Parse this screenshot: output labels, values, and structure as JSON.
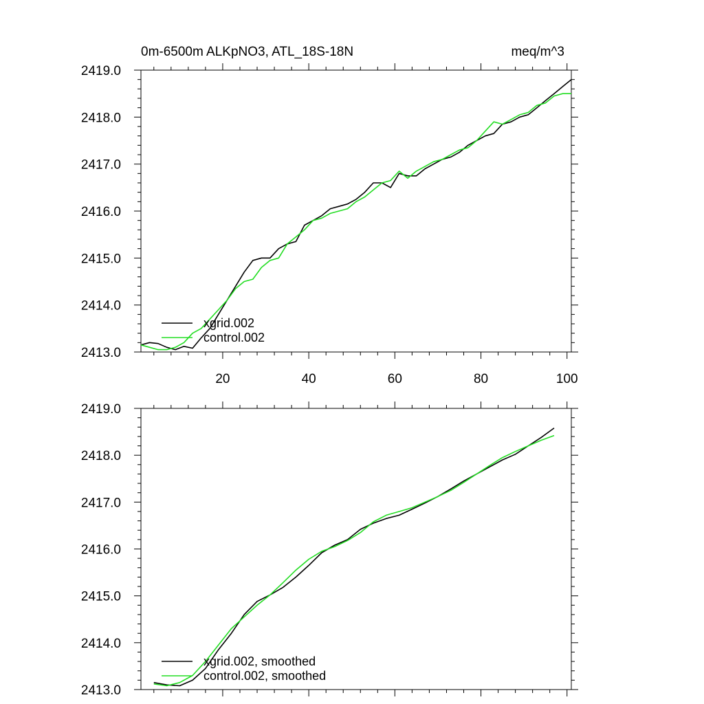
{
  "header": {
    "title_left": "0m-6500m ALKpNO3, ATL_18S-18N",
    "title_right": "meq/m^3"
  },
  "colors": {
    "xgrid": "#000000",
    "control": "#22dd22",
    "axis": "#000000",
    "background": "#ffffff"
  },
  "chart_data": [
    {
      "type": "line",
      "title": "0m-6500m ALKpNO3, ATL_18S-18N",
      "units": "meq/m^3",
      "xlim": [
        1,
        101
      ],
      "ylim": [
        2413.0,
        2419.0
      ],
      "x_ticks": [
        "20",
        "40",
        "60",
        "80",
        "100"
      ],
      "y_ticks": [
        "2413.0",
        "2414.0",
        "2415.0",
        "2416.0",
        "2417.0",
        "2418.0",
        "2419.0"
      ],
      "grid": false,
      "legend_position": "bottom-left",
      "series": [
        {
          "name": "xgrid.002",
          "key": "xgrid",
          "x": [
            1,
            3,
            5,
            7,
            9,
            11,
            13,
            15,
            17,
            19,
            21,
            23,
            25,
            27,
            29,
            31,
            33,
            35,
            37,
            39,
            41,
            43,
            45,
            47,
            49,
            51,
            53,
            55,
            57,
            59,
            61,
            63,
            65,
            67,
            69,
            71,
            73,
            75,
            77,
            79,
            81,
            83,
            85,
            87,
            89,
            91,
            93,
            95,
            97,
            99,
            101
          ],
          "y": [
            2413.15,
            2413.2,
            2413.18,
            2413.1,
            2413.05,
            2413.12,
            2413.08,
            2413.3,
            2413.5,
            2413.8,
            2414.1,
            2414.4,
            2414.7,
            2414.95,
            2415.0,
            2415.0,
            2415.2,
            2415.3,
            2415.35,
            2415.7,
            2415.8,
            2415.9,
            2416.05,
            2416.1,
            2416.15,
            2416.25,
            2416.4,
            2416.6,
            2416.6,
            2416.5,
            2416.8,
            2416.75,
            2416.75,
            2416.9,
            2417.0,
            2417.1,
            2417.15,
            2417.25,
            2417.4,
            2417.5,
            2417.6,
            2417.65,
            2417.85,
            2417.9,
            2418.0,
            2418.05,
            2418.2,
            2418.35,
            2418.5,
            2418.65,
            2418.8
          ]
        },
        {
          "name": "control.002",
          "key": "control",
          "x": [
            1,
            3,
            5,
            7,
            9,
            11,
            13,
            15,
            17,
            19,
            21,
            23,
            25,
            27,
            29,
            31,
            33,
            35,
            37,
            39,
            41,
            43,
            45,
            47,
            49,
            51,
            53,
            55,
            57,
            59,
            61,
            63,
            65,
            67,
            69,
            71,
            73,
            75,
            77,
            79,
            81,
            83,
            85,
            87,
            89,
            91,
            93,
            95,
            97,
            99,
            101
          ],
          "y": [
            2413.15,
            2413.1,
            2413.05,
            2413.05,
            2413.1,
            2413.2,
            2413.4,
            2413.5,
            2413.7,
            2413.9,
            2414.1,
            2414.35,
            2414.5,
            2414.55,
            2414.8,
            2414.95,
            2415.0,
            2415.3,
            2415.45,
            2415.6,
            2415.8,
            2415.85,
            2415.95,
            2416.0,
            2416.05,
            2416.2,
            2416.3,
            2416.45,
            2416.6,
            2416.65,
            2416.85,
            2416.7,
            2416.85,
            2416.95,
            2417.05,
            2417.1,
            2417.2,
            2417.3,
            2417.35,
            2417.5,
            2417.7,
            2417.9,
            2417.85,
            2417.95,
            2418.05,
            2418.1,
            2418.25,
            2418.3,
            2418.45,
            2418.5,
            2418.5
          ]
        }
      ]
    },
    {
      "type": "line",
      "xlim": [
        1,
        101
      ],
      "ylim": [
        2413.0,
        2419.0
      ],
      "x_ticks": [],
      "y_ticks": [
        "2413.0",
        "2414.0",
        "2415.0",
        "2416.0",
        "2417.0",
        "2418.0",
        "2419.0"
      ],
      "grid": false,
      "legend_position": "bottom-left",
      "series": [
        {
          "name": "xgrid.002, smoothed",
          "key": "xgrid",
          "x": [
            4,
            7,
            10,
            13,
            16,
            19,
            22,
            25,
            28,
            31,
            34,
            37,
            40,
            43,
            46,
            49,
            52,
            55,
            58,
            61,
            64,
            67,
            70,
            73,
            76,
            79,
            82,
            85,
            88,
            91,
            94,
            97
          ],
          "y": [
            2413.15,
            2413.1,
            2413.08,
            2413.2,
            2413.45,
            2413.85,
            2414.2,
            2414.6,
            2414.88,
            2415.02,
            2415.18,
            2415.4,
            2415.65,
            2415.92,
            2416.08,
            2416.2,
            2416.42,
            2416.55,
            2416.65,
            2416.72,
            2416.85,
            2416.98,
            2417.12,
            2417.28,
            2417.45,
            2417.6,
            2417.75,
            2417.9,
            2418.02,
            2418.2,
            2418.38,
            2418.58
          ]
        },
        {
          "name": "control.002, smoothed",
          "key": "control",
          "x": [
            4,
            7,
            10,
            13,
            16,
            19,
            22,
            25,
            28,
            31,
            34,
            37,
            40,
            43,
            46,
            49,
            52,
            55,
            58,
            61,
            64,
            67,
            70,
            73,
            76,
            79,
            82,
            85,
            88,
            91,
            94,
            97
          ],
          "y": [
            2413.12,
            2413.08,
            2413.15,
            2413.3,
            2413.6,
            2413.95,
            2414.3,
            2414.55,
            2414.8,
            2415.02,
            2415.28,
            2415.55,
            2415.78,
            2415.95,
            2416.05,
            2416.18,
            2416.35,
            2416.58,
            2416.72,
            2416.8,
            2416.88,
            2417.0,
            2417.12,
            2417.25,
            2417.42,
            2417.6,
            2417.78,
            2417.95,
            2418.08,
            2418.2,
            2418.32,
            2418.42
          ]
        }
      ]
    }
  ]
}
